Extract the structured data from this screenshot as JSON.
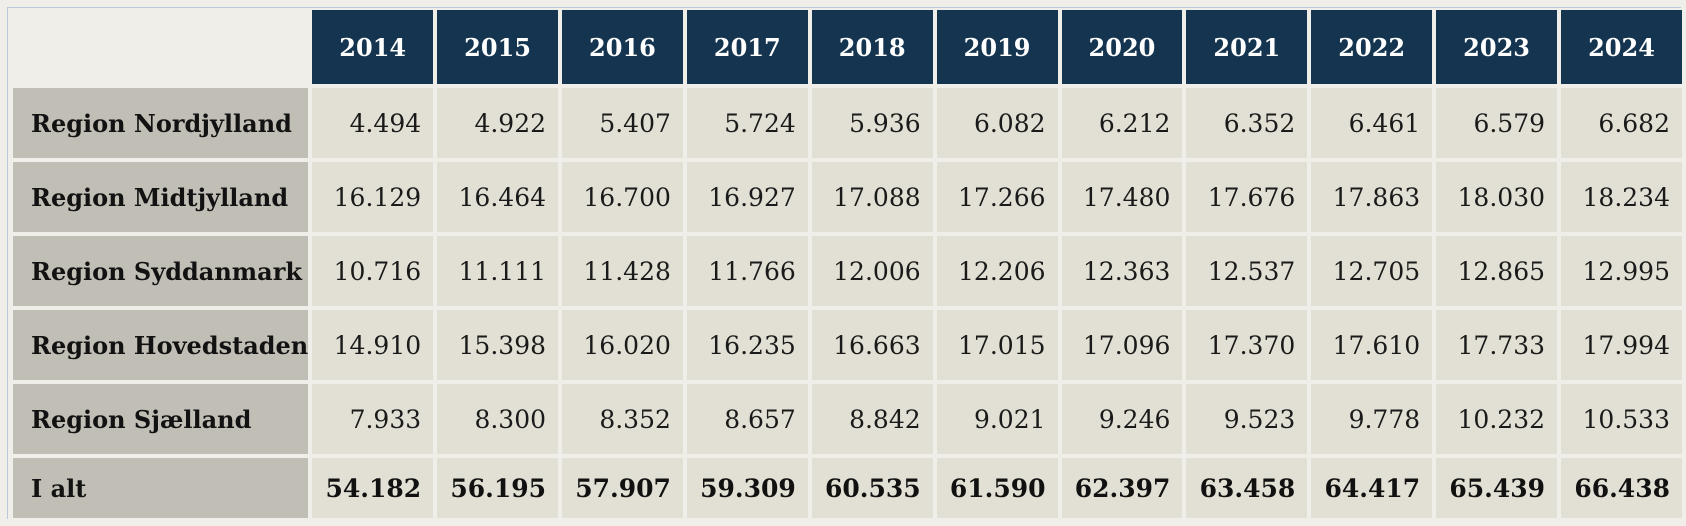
{
  "chart_data": {
    "type": "table",
    "columns": [
      "2014",
      "2015",
      "2016",
      "2017",
      "2018",
      "2019",
      "2020",
      "2021",
      "2022",
      "2023",
      "2024"
    ],
    "rows": [
      {
        "label": "Region Nordjylland",
        "values": [
          "4.494",
          "4.922",
          "5.407",
          "5.724",
          "5.936",
          "6.082",
          "6.212",
          "6.352",
          "6.461",
          "6.579",
          "6.682"
        ]
      },
      {
        "label": "Region Midtjylland",
        "values": [
          "16.129",
          "16.464",
          "16.700",
          "16.927",
          "17.088",
          "17.266",
          "17.480",
          "17.676",
          "17.863",
          "18.030",
          "18.234"
        ]
      },
      {
        "label": "Region Syddanmark",
        "values": [
          "10.716",
          "11.111",
          "11.428",
          "11.766",
          "12.006",
          "12.206",
          "12.363",
          "12.537",
          "12.705",
          "12.865",
          "12.995"
        ]
      },
      {
        "label": "Region Hovedstaden",
        "values": [
          "14.910",
          "15.398",
          "16.020",
          "16.235",
          "16.663",
          "17.015",
          "17.096",
          "17.370",
          "17.610",
          "17.733",
          "17.994"
        ]
      },
      {
        "label": "Region Sjælland",
        "values": [
          "7.933",
          "8.300",
          "8.352",
          "8.657",
          "8.842",
          "9.021",
          "9.246",
          "9.523",
          "9.778",
          "10.232",
          "10.533"
        ]
      }
    ],
    "total": {
      "label": "I alt",
      "values": [
        "54.182",
        "56.195",
        "57.907",
        "59.309",
        "60.535",
        "61.590",
        "62.397",
        "63.458",
        "64.417",
        "65.439",
        "66.438"
      ]
    }
  },
  "colors": {
    "header_bg": "#143450",
    "header_text": "#ffffff",
    "row_label_bg": "#c1beb5",
    "cell_bg": "#e2e0d4",
    "page_bg": "#efeee9"
  }
}
